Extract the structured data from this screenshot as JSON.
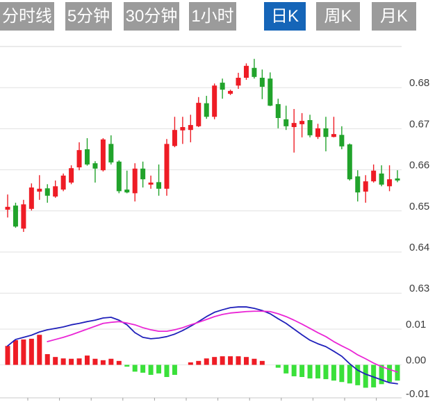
{
  "tab_bar": {
    "tabs": [
      {
        "label": "分时线",
        "active": false
      },
      {
        "label": "5分钟",
        "active": false
      },
      {
        "label": "30分钟",
        "active": false
      },
      {
        "label": "1小时",
        "active": false
      },
      {
        "label": "日K",
        "active": true
      },
      {
        "label": "周K",
        "active": false
      },
      {
        "label": "月K",
        "active": false
      }
    ]
  },
  "colors": {
    "up": "#ee1c25",
    "down": "#21a32b",
    "hist_up": "#ee1c25",
    "hist_down": "#3ae03a",
    "dif_line": "#1f1fba",
    "dea_line": "#ea25d5",
    "tab_bg": "#9b9b9b",
    "tab_active_bg": "#1565b8",
    "tab_text": "#ffffff",
    "grid": "#e1e1e1",
    "grid_top": "#d6d6d6",
    "zero_line": "#e9e9e9",
    "axis_line": "#c9c9c9",
    "axis_tick": "#9e9e9e",
    "label_text": "#3b3b3b"
  },
  "axes": {
    "price_top_gridline_value": 0.69,
    "price_ticks": [
      {
        "label": "0.68",
        "value": 0.68
      },
      {
        "label": "0.67",
        "value": 0.67
      },
      {
        "label": "0.66",
        "value": 0.66
      },
      {
        "label": "0.65",
        "value": 0.65
      },
      {
        "label": "0.64",
        "value": 0.64
      },
      {
        "label": "0.63",
        "value": 0.63
      }
    ],
    "macd_ticks": [
      {
        "label": "0.01",
        "value": 0.01,
        "gridline": true
      },
      {
        "label": "0.00",
        "value": 0.0,
        "gridline": false
      },
      {
        "label": "-0.01",
        "value": -0.01,
        "gridline": false
      }
    ]
  },
  "chart_data": {
    "type": "candlestick",
    "title": "日K line chart with MACD indicator",
    "price_ylim": [
      0.628,
      0.692
    ],
    "macd_ylim": [
      -0.011,
      0.021
    ],
    "ohlc_format": "[open, high, low, close]",
    "ohlc": [
      [
        0.6503,
        0.654,
        0.6484,
        0.651
      ],
      [
        0.6513,
        0.652,
        0.6459,
        0.6462
      ],
      [
        0.6457,
        0.6527,
        0.6449,
        0.6516
      ],
      [
        0.6505,
        0.6567,
        0.6501,
        0.6557
      ],
      [
        0.6547,
        0.6587,
        0.6527,
        0.6554
      ],
      [
        0.6555,
        0.6565,
        0.652,
        0.6537
      ],
      [
        0.6535,
        0.6574,
        0.6532,
        0.656
      ],
      [
        0.6552,
        0.6591,
        0.6548,
        0.6586
      ],
      [
        0.6569,
        0.6611,
        0.6565,
        0.6604
      ],
      [
        0.6606,
        0.6667,
        0.6599,
        0.6648
      ],
      [
        0.665,
        0.6677,
        0.661,
        0.6613
      ],
      [
        0.6616,
        0.6621,
        0.6569,
        0.6603
      ],
      [
        0.6599,
        0.6677,
        0.6596,
        0.6674
      ],
      [
        0.6663,
        0.6684,
        0.6613,
        0.6618
      ],
      [
        0.662,
        0.6623,
        0.6543,
        0.6548
      ],
      [
        0.6552,
        0.6598,
        0.6543,
        0.6545
      ],
      [
        0.6543,
        0.6616,
        0.6523,
        0.6603
      ],
      [
        0.6603,
        0.662,
        0.6557,
        0.6577
      ],
      [
        0.6564,
        0.6586,
        0.6554,
        0.6569
      ],
      [
        0.657,
        0.6613,
        0.6537,
        0.6554
      ],
      [
        0.6554,
        0.6675,
        0.6537,
        0.6663
      ],
      [
        0.6658,
        0.6729,
        0.6655,
        0.6697
      ],
      [
        0.6696,
        0.6729,
        0.6663,
        0.6704
      ],
      [
        0.6697,
        0.6734,
        0.6667,
        0.6709
      ],
      [
        0.6706,
        0.6777,
        0.6704,
        0.6763
      ],
      [
        0.6762,
        0.678,
        0.6724,
        0.6729
      ],
      [
        0.6729,
        0.681,
        0.6723,
        0.6805
      ],
      [
        0.6812,
        0.6822,
        0.6773,
        0.6795
      ],
      [
        0.6785,
        0.6795,
        0.6782,
        0.6792
      ],
      [
        0.6805,
        0.6836,
        0.6797,
        0.6824
      ],
      [
        0.6824,
        0.6859,
        0.6819,
        0.6853
      ],
      [
        0.6848,
        0.687,
        0.6822,
        0.6826
      ],
      [
        0.6824,
        0.6844,
        0.6772,
        0.6802
      ],
      [
        0.6822,
        0.6837,
        0.6755,
        0.6756
      ],
      [
        0.676,
        0.6773,
        0.6701,
        0.6726
      ],
      [
        0.6723,
        0.6756,
        0.6697,
        0.6706
      ],
      [
        0.6704,
        0.6748,
        0.6642,
        0.6714
      ],
      [
        0.6711,
        0.6738,
        0.6679,
        0.6719
      ],
      [
        0.6721,
        0.6734,
        0.6679,
        0.6684
      ],
      [
        0.668,
        0.6712,
        0.6675,
        0.6701
      ],
      [
        0.6701,
        0.6729,
        0.6645,
        0.668
      ],
      [
        0.668,
        0.6729,
        0.6679,
        0.6687
      ],
      [
        0.6685,
        0.6706,
        0.665,
        0.6657
      ],
      [
        0.6662,
        0.6664,
        0.6574,
        0.6577
      ],
      [
        0.6584,
        0.6599,
        0.6523,
        0.6545
      ],
      [
        0.6547,
        0.6587,
        0.652,
        0.6572
      ],
      [
        0.6572,
        0.6613,
        0.6569,
        0.6598
      ],
      [
        0.6591,
        0.6611,
        0.656,
        0.6564
      ],
      [
        0.656,
        0.6611,
        0.6548,
        0.6577
      ],
      [
        0.6579,
        0.6599,
        0.657,
        0.6574
      ]
    ],
    "macd": {
      "hist": [
        0.0053,
        0.0069,
        0.0071,
        0.0073,
        0.0084,
        0.003,
        0.0022,
        0.0018,
        0.0017,
        0.0018,
        0.0026,
        0.0017,
        0.0013,
        0.0017,
        0.0011,
        -0.0005,
        -0.0019,
        -0.0022,
        -0.0028,
        -0.0024,
        -0.0034,
        -0.0028,
        0.0,
        0.0007,
        0.0011,
        0.0018,
        0.0022,
        0.0024,
        0.0024,
        0.0024,
        0.0022,
        0.0017,
        0.0011,
        0.0,
        -0.0008,
        -0.0024,
        -0.0032,
        -0.0034,
        -0.0038,
        -0.0038,
        -0.004,
        -0.0044,
        -0.0048,
        -0.0052,
        -0.0057,
        -0.0064,
        -0.0063,
        -0.0054,
        -0.0048,
        -0.0044
      ],
      "dif": {
        "start_index": 0,
        "values": [
          0.0053,
          0.0071,
          0.0077,
          0.0083,
          0.0092,
          0.0098,
          0.0102,
          0.0106,
          0.0112,
          0.0116,
          0.0121,
          0.0125,
          0.0131,
          0.0133,
          0.0125,
          0.0112,
          0.009,
          0.0077,
          0.0073,
          0.0075,
          0.0079,
          0.0086,
          0.0096,
          0.0108,
          0.0121,
          0.0135,
          0.0147,
          0.0154,
          0.016,
          0.0162,
          0.0162,
          0.0158,
          0.0152,
          0.0143,
          0.0129,
          0.0116,
          0.01,
          0.0084,
          0.0069,
          0.0059,
          0.0051,
          0.0038,
          0.0024,
          0.0003,
          -0.0015,
          -0.0026,
          -0.0034,
          -0.0042,
          -0.005,
          -0.0053
        ]
      },
      "dea": {
        "start_index": 5,
        "values": [
          0.0065,
          0.0071,
          0.0077,
          0.0084,
          0.0092,
          0.01,
          0.0108,
          0.0116,
          0.0119,
          0.0121,
          0.0117,
          0.0112,
          0.0104,
          0.0098,
          0.0094,
          0.0094,
          0.0098,
          0.0104,
          0.0112,
          0.0119,
          0.0127,
          0.0135,
          0.0141,
          0.0145,
          0.0147,
          0.0149,
          0.015,
          0.015,
          0.0149,
          0.0143,
          0.0135,
          0.0125,
          0.0114,
          0.0102,
          0.009,
          0.0079,
          0.0065,
          0.0053,
          0.0042,
          0.0028,
          0.0017,
          0.0005,
          -0.0005,
          -0.0013,
          -0.002
        ]
      }
    }
  }
}
